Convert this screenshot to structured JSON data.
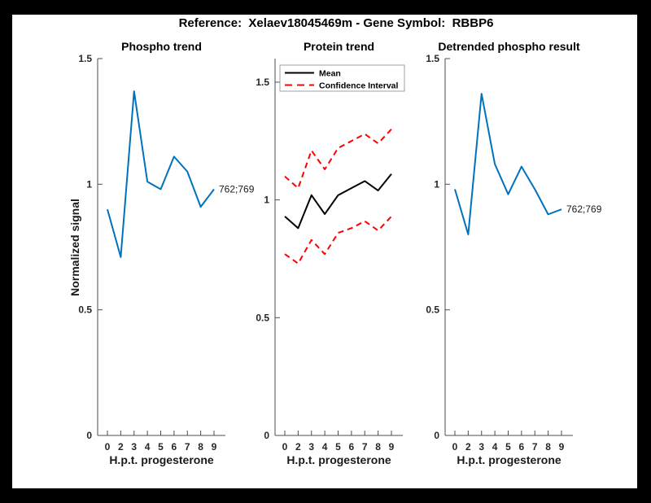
{
  "figure": {
    "title": "Reference:  Xelaev18045469m - Gene Symbol:  RBBP6",
    "background_color": "#ffffff",
    "frame_color": "#000000"
  },
  "colors": {
    "line_blue": "#0072BD",
    "line_red": "#FF0000",
    "line_black": "#000000",
    "axis": "#4d4d4d",
    "legend_border": "#a0a0a0"
  },
  "chart_data": [
    {
      "type": "line",
      "title": "Phospho trend",
      "xlabel": "H.p.t. progesterone",
      "ylabel": "Normalized signal",
      "x_tick_labels": [
        "0",
        "2",
        "3",
        "4",
        "5",
        "6",
        "7",
        "8",
        "9"
      ],
      "y_ticks": [
        0,
        0.5,
        1,
        1.5
      ],
      "y_tick_labels": [
        "0",
        "0.5",
        "1",
        "1.5"
      ],
      "ylim": [
        0,
        1.5
      ],
      "grid": false,
      "legend": null,
      "annotation": {
        "text": "762;769"
      },
      "series": [
        {
          "name": "phospho-signal",
          "color": "#0072BD",
          "style": "solid",
          "values": [
            0.9,
            0.71,
            1.37,
            1.01,
            0.98,
            1.11,
            1.05,
            0.91,
            0.98
          ]
        }
      ]
    },
    {
      "type": "line",
      "title": "Protein trend",
      "xlabel": "H.p.t. progesterone",
      "ylabel": "",
      "x_tick_labels": [
        "0",
        "2",
        "3",
        "4",
        "5",
        "6",
        "7",
        "8",
        "9"
      ],
      "y_ticks": [
        0,
        0.5,
        1,
        1.5
      ],
      "y_tick_labels": [
        "0",
        "0.5",
        "1",
        "1.5"
      ],
      "ylim": [
        0,
        1.6
      ],
      "grid": false,
      "legend": {
        "position": "northwest",
        "entries": [
          {
            "label": "Mean",
            "color": "#000000",
            "style": "solid"
          },
          {
            "label": "Confidence Interval",
            "color": "#FF0000",
            "style": "dashed"
          }
        ]
      },
      "annotation": null,
      "series": [
        {
          "name": "ci-upper",
          "color": "#FF0000",
          "style": "dashed",
          "values": [
            1.1,
            1.05,
            1.21,
            1.13,
            1.22,
            1.25,
            1.28,
            1.24,
            1.3
          ]
        },
        {
          "name": "ci-lower",
          "color": "#FF0000",
          "style": "dashed",
          "values": [
            0.77,
            0.73,
            0.83,
            0.77,
            0.86,
            0.88,
            0.91,
            0.87,
            0.93
          ]
        },
        {
          "name": "mean",
          "color": "#000000",
          "style": "solid",
          "values": [
            0.93,
            0.88,
            1.02,
            0.94,
            1.02,
            1.05,
            1.08,
            1.04,
            1.11
          ]
        }
      ]
    },
    {
      "type": "line",
      "title": "Detrended phospho result",
      "xlabel": "H.p.t. progesterone",
      "ylabel": "",
      "x_tick_labels": [
        "0",
        "2",
        "3",
        "4",
        "5",
        "6",
        "7",
        "8",
        "9"
      ],
      "y_ticks": [
        0,
        0.5,
        1,
        1.5
      ],
      "y_tick_labels": [
        "0",
        "0.5",
        "1",
        "1.5"
      ],
      "ylim": [
        0,
        1.5
      ],
      "grid": false,
      "legend": null,
      "annotation": {
        "text": "762;769"
      },
      "series": [
        {
          "name": "detrended-phospho-signal",
          "color": "#0072BD",
          "style": "solid",
          "values": [
            0.98,
            0.8,
            1.36,
            1.08,
            0.96,
            1.07,
            0.98,
            0.88,
            0.9
          ]
        }
      ]
    }
  ]
}
